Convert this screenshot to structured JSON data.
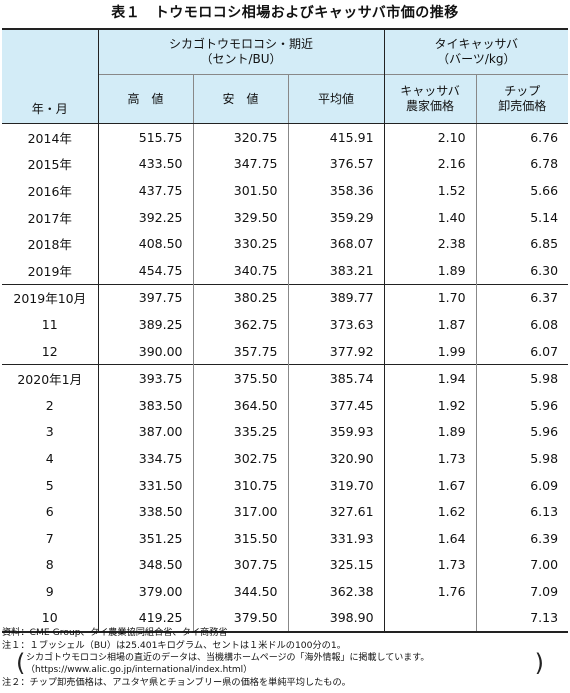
{
  "title": "表１　トウモロコシ相場およびキャッサバ市価の推移",
  "header": {
    "row_header": "年・月",
    "group1_line1": "シカゴトウモロコシ・期近",
    "group1_line2": "（セント/BU）",
    "group2_line1": "タイキャッサバ",
    "group2_line2": "（バーツ/kg）",
    "col_high": "高　値",
    "col_low": "安　値",
    "col_avg": "平均値",
    "col_farm_line1": "キャッサバ",
    "col_farm_line2": "農家価格",
    "col_chip_line1": "チップ",
    "col_chip_line2": "卸売価格"
  },
  "groups": [
    {
      "rows": [
        {
          "label": "2014年",
          "high": "515.75",
          "low": "320.75",
          "avg": "415.91",
          "farm": "2.10",
          "chip": "6.76"
        },
        {
          "label": "2015年",
          "high": "433.50",
          "low": "347.75",
          "avg": "376.57",
          "farm": "2.16",
          "chip": "6.78"
        },
        {
          "label": "2016年",
          "high": "437.75",
          "low": "301.50",
          "avg": "358.36",
          "farm": "1.52",
          "chip": "5.66"
        },
        {
          "label": "2017年",
          "high": "392.25",
          "low": "329.50",
          "avg": "359.29",
          "farm": "1.40",
          "chip": "5.14"
        },
        {
          "label": "2018年",
          "high": "408.50",
          "low": "330.25",
          "avg": "368.07",
          "farm": "2.38",
          "chip": "6.85"
        },
        {
          "label": "2019年",
          "high": "454.75",
          "low": "340.75",
          "avg": "383.21",
          "farm": "1.89",
          "chip": "6.30"
        }
      ]
    },
    {
      "rows": [
        {
          "label": "2019年10月",
          "high": "397.75",
          "low": "380.25",
          "avg": "389.77",
          "farm": "1.70",
          "chip": "6.37"
        },
        {
          "label": "11",
          "high": "389.25",
          "low": "362.75",
          "avg": "373.63",
          "farm": "1.87",
          "chip": "6.08"
        },
        {
          "label": "12",
          "high": "390.00",
          "low": "357.75",
          "avg": "377.92",
          "farm": "1.99",
          "chip": "6.07"
        }
      ]
    },
    {
      "rows": [
        {
          "label": "2020年1月",
          "high": "393.75",
          "low": "375.50",
          "avg": "385.74",
          "farm": "1.94",
          "chip": "5.98"
        },
        {
          "label": "2",
          "high": "383.50",
          "low": "364.50",
          "avg": "377.45",
          "farm": "1.92",
          "chip": "5.96"
        },
        {
          "label": "3",
          "high": "387.00",
          "low": "335.25",
          "avg": "359.93",
          "farm": "1.89",
          "chip": "5.96"
        },
        {
          "label": "4",
          "high": "334.75",
          "low": "302.75",
          "avg": "320.90",
          "farm": "1.73",
          "chip": "5.98"
        },
        {
          "label": "5",
          "high": "331.50",
          "low": "310.75",
          "avg": "319.70",
          "farm": "1.67",
          "chip": "6.09"
        },
        {
          "label": "6",
          "high": "338.50",
          "low": "317.00",
          "avg": "327.61",
          "farm": "1.62",
          "chip": "6.13"
        },
        {
          "label": "7",
          "high": "351.25",
          "low": "315.50",
          "avg": "331.93",
          "farm": "1.64",
          "chip": "6.39"
        },
        {
          "label": "8",
          "high": "348.50",
          "low": "307.75",
          "avg": "325.15",
          "farm": "1.73",
          "chip": "7.00"
        },
        {
          "label": "9",
          "high": "379.00",
          "low": "344.50",
          "avg": "362.38",
          "farm": "1.76",
          "chip": "7.09"
        },
        {
          "label": "10",
          "high": "419.25",
          "low": "379.50",
          "avg": "398.90",
          "farm": "",
          "chip": "7.13"
        }
      ]
    }
  ],
  "notes": {
    "source": "資料：CME Group、タイ農業協同組合省、タイ商務省",
    "note1": "注１：１ブッシェル（BU）は25.401キログラム、セントは１米ドルの100分の1。",
    "paren_line1": "シカゴトウモロコシ相場の直近のデータは、当機構ホームページの「海外情報」に掲載しています。",
    "paren_line2": "（https://www.alic.go.jp/international/index.html）",
    "paren_open": "(",
    "paren_close": ")",
    "note2": "注２：チップ卸売価格は、アユタヤ県とチョンブリー県の価格を単純平均したもの。"
  }
}
